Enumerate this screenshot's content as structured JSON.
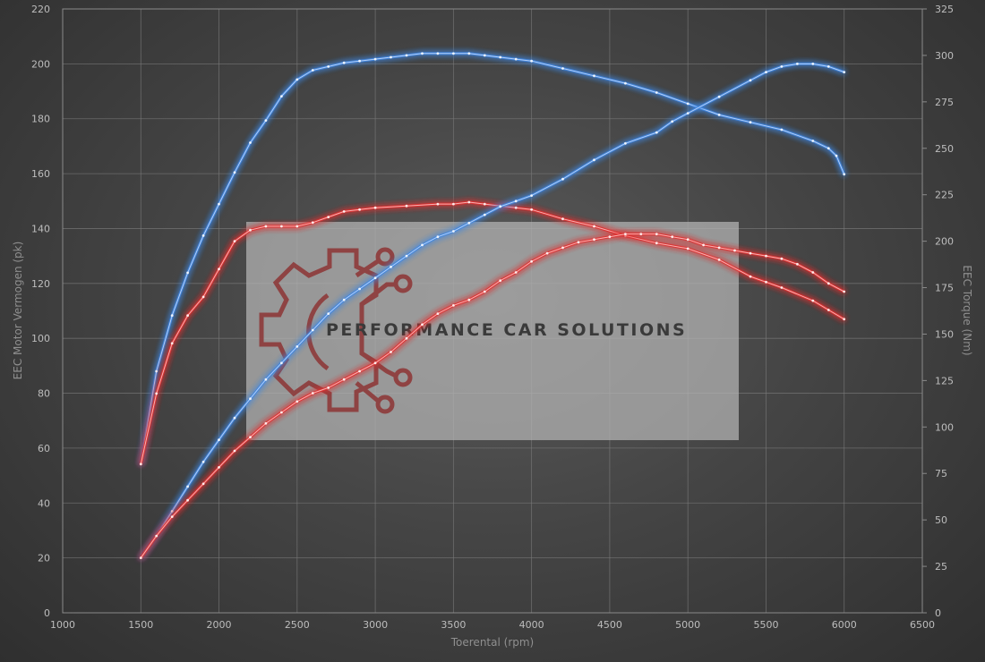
{
  "chart_data": {
    "type": "line",
    "xlabel": "Toerental (rpm)",
    "ylabel": "EEC Motor Vermogen (pk)",
    "y2label": "EEC Torque (Nm)",
    "xlim": [
      1000,
      6500
    ],
    "ylim": [
      0,
      220
    ],
    "y2lim": [
      0,
      325
    ],
    "x_ticks": [
      1000,
      1500,
      2000,
      2500,
      3000,
      3500,
      4000,
      4500,
      5000,
      5500,
      6000,
      6500
    ],
    "y_ticks": [
      0,
      20,
      40,
      60,
      80,
      100,
      120,
      140,
      160,
      180,
      200,
      220
    ],
    "y2_ticks": [
      0,
      25,
      50,
      75,
      100,
      125,
      150,
      175,
      200,
      225,
      250,
      275,
      300,
      325
    ],
    "grid": true,
    "watermark": "PERFORMANCE CAR SOLUTIONS",
    "series": [
      {
        "axis": "right",
        "color": "#3f86e0",
        "x": [
          1500,
          1600,
          1700,
          1800,
          1900,
          2000,
          2100,
          2200,
          2300,
          2400,
          2500,
          2600,
          2700,
          2800,
          2900,
          3000,
          3100,
          3200,
          3300,
          3400,
          3500,
          3600,
          3700,
          3800,
          3900,
          4000,
          4200,
          4400,
          4600,
          4800,
          5000,
          5200,
          5400,
          5600,
          5800,
          5900,
          5950,
          6000
        ],
        "values": [
          80,
          130,
          160,
          183,
          203,
          220,
          237,
          253,
          265,
          278,
          287,
          292,
          294,
          296,
          297,
          298,
          299,
          300,
          301,
          301,
          301,
          301,
          300,
          299,
          298,
          297,
          293,
          289,
          285,
          280,
          274,
          268,
          264,
          260,
          254,
          250,
          246,
          236
        ]
      },
      {
        "axis": "right",
        "color": "#e03030",
        "x": [
          1500,
          1600,
          1700,
          1800,
          1900,
          2000,
          2100,
          2200,
          2300,
          2400,
          2500,
          2600,
          2700,
          2800,
          2900,
          3000,
          3200,
          3400,
          3500,
          3600,
          3700,
          3800,
          3900,
          4000,
          4200,
          4400,
          4600,
          4800,
          5000,
          5200,
          5400,
          5500,
          5600,
          5800,
          5900,
          6000
        ],
        "values": [
          80,
          118,
          145,
          160,
          170,
          185,
          200,
          206,
          208,
          208,
          208,
          210,
          213,
          216,
          217,
          218,
          219,
          220,
          220,
          221,
          220,
          219,
          218,
          217,
          212,
          208,
          203,
          199,
          196,
          190,
          181,
          178,
          175,
          168,
          163,
          158
        ]
      },
      {
        "axis": "left",
        "color": "#3f86e0",
        "x": [
          1500,
          1600,
          1700,
          1800,
          1900,
          2000,
          2100,
          2200,
          2300,
          2400,
          2500,
          2600,
          2700,
          2800,
          2900,
          3000,
          3100,
          3200,
          3300,
          3400,
          3500,
          3600,
          3700,
          3800,
          3900,
          4000,
          4200,
          4400,
          4600,
          4800,
          4900,
          5000,
          5200,
          5400,
          5500,
          5600,
          5700,
          5800,
          5900,
          6000
        ],
        "values": [
          20,
          28,
          37,
          46,
          55,
          63,
          71,
          78,
          85,
          91,
          97,
          103,
          109,
          114,
          118,
          122,
          126,
          130,
          134,
          137,
          139,
          142,
          145,
          148,
          150,
          152,
          158,
          165,
          171,
          175,
          179,
          182,
          188,
          194,
          197,
          199,
          200,
          200,
          199,
          197
        ]
      },
      {
        "axis": "left",
        "color": "#e03030",
        "x": [
          1500,
          1600,
          1700,
          1800,
          1900,
          2000,
          2100,
          2200,
          2300,
          2400,
          2500,
          2600,
          2700,
          2800,
          2900,
          3000,
          3100,
          3200,
          3300,
          3400,
          3500,
          3600,
          3700,
          3800,
          3900,
          4000,
          4100,
          4200,
          4300,
          4400,
          4500,
          4600,
          4700,
          4800,
          4900,
          5000,
          5100,
          5200,
          5300,
          5400,
          5500,
          5600,
          5700,
          5800,
          5900,
          6000
        ],
        "values": [
          20,
          28,
          35,
          41,
          47,
          53,
          59,
          64,
          69,
          73,
          77,
          80,
          82,
          85,
          88,
          91,
          95,
          100,
          105,
          109,
          112,
          114,
          117,
          121,
          124,
          128,
          131,
          133,
          135,
          136,
          137,
          138,
          138,
          138,
          137,
          136,
          134,
          133,
          132,
          131,
          130,
          129,
          127,
          124,
          120,
          117
        ]
      }
    ]
  }
}
